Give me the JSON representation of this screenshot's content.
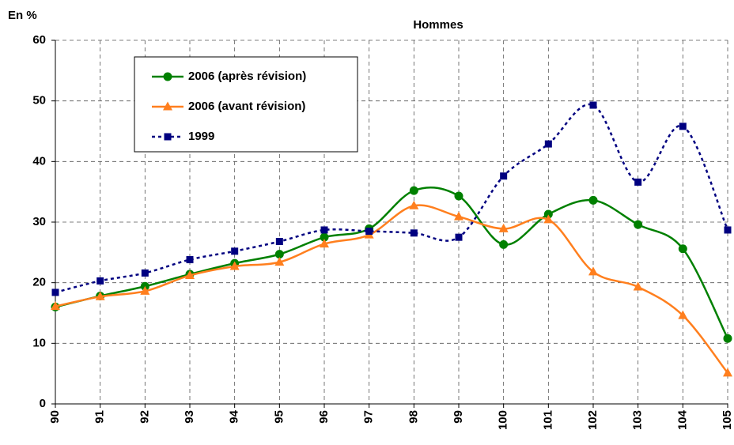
{
  "chart_data": {
    "type": "line",
    "title": "Hommes",
    "y_label": "En %",
    "x": [
      90,
      91,
      92,
      93,
      94,
      95,
      96,
      97,
      98,
      99,
      100,
      101,
      102,
      103,
      104,
      105
    ],
    "xlim": [
      90,
      105
    ],
    "xticks": [
      90,
      91,
      92,
      93,
      94,
      95,
      96,
      97,
      98,
      99,
      100,
      101,
      102,
      103,
      104,
      105
    ],
    "ylim": [
      0,
      60
    ],
    "yticks": [
      0,
      10,
      20,
      30,
      40,
      50,
      60
    ],
    "grid": true,
    "smooth": true,
    "legend": "upper left",
    "series": [
      {
        "name": "2006 (après révision)",
        "color": "#008000",
        "marker": "circle",
        "dash": "solid",
        "values": [
          16,
          17.8,
          19.4,
          21.4,
          23.2,
          24.7,
          27.5,
          28.9,
          35.2,
          34.3,
          26.3,
          31.3,
          33.6,
          29.6,
          25.6,
          10.8
        ]
      },
      {
        "name": "2006 (avant révision)",
        "color": "#ff7f1e",
        "marker": "triangle",
        "dash": "solid",
        "values": [
          16.1,
          17.7,
          18.6,
          21.2,
          22.7,
          23.4,
          26.4,
          27.9,
          32.7,
          30.9,
          28.9,
          30.4,
          21.8,
          19.3,
          14.6,
          5.1
        ]
      },
      {
        "name": "1999",
        "color": "#000080",
        "marker": "square",
        "dash": "dotted",
        "values": [
          18.4,
          20.3,
          21.6,
          23.8,
          25.2,
          26.8,
          28.7,
          28.5,
          28.2,
          27.5,
          37.6,
          42.9,
          49.3,
          36.6,
          45.8,
          28.7
        ]
      }
    ]
  }
}
